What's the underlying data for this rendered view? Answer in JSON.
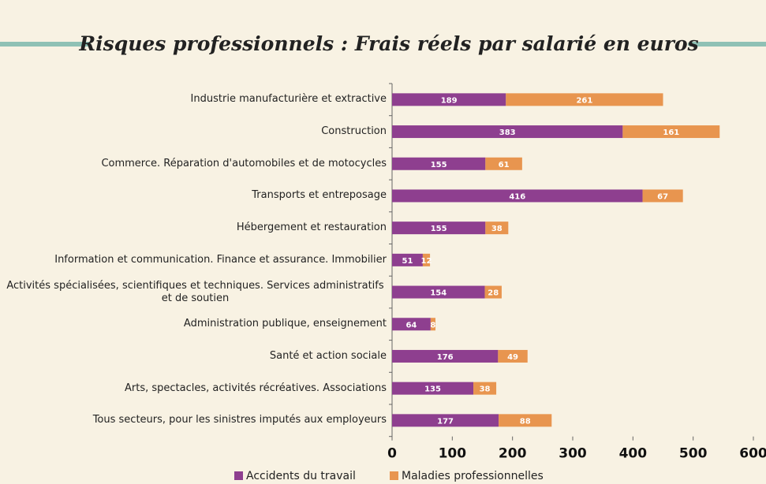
{
  "chart_data": {
    "type": "bar",
    "orientation": "horizontal",
    "stacked": true,
    "title": "Risques professionnels : Frais réels par salarié en euros",
    "categories": [
      "Industrie manufacturière et extractive",
      "Construction",
      "Commerce. Réparation d'automobiles et de motocycles",
      "Transports et entreposage",
      "Hébergement et restauration",
      "Information et communication. Finance et assurance. Immobilier",
      "Activités spécialisées, scientifiques et techniques. Services administratifs et de soutien",
      "Administration publique, enseignement",
      "Santé et action sociale",
      "Arts, spectacles, activités récréatives. Associations",
      "Tous secteurs, pour les sinistres imputés aux employeurs"
    ],
    "series": [
      {
        "name": "Accidents du travail",
        "color": "#8e3f8f",
        "values": [
          189,
          383,
          155,
          416,
          155,
          51,
          154,
          64,
          176,
          135,
          177
        ]
      },
      {
        "name": "Maladies professionnelles",
        "color": "#e8954f",
        "values": [
          261,
          161,
          61,
          67,
          38,
          12,
          28,
          8,
          49,
          38,
          88
        ]
      }
    ],
    "xlim": [
      0,
      600
    ],
    "xticks": [
      0,
      100,
      200,
      300,
      400,
      500,
      600
    ],
    "legend": "bottom"
  }
}
